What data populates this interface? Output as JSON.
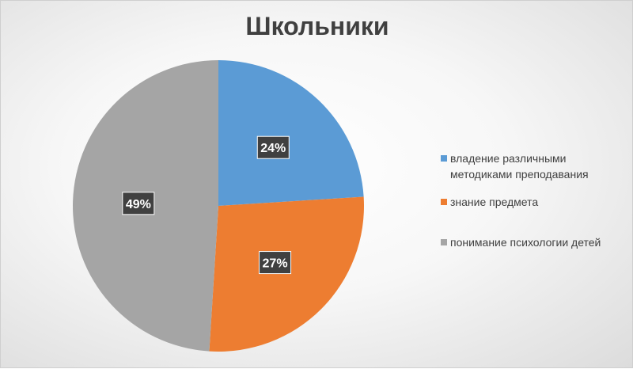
{
  "chart_data": {
    "type": "pie",
    "title": "Школьники",
    "categories": [
      "владение различными методиками преподавания",
      "знание предмета",
      "понимание психологии детей"
    ],
    "values": [
      24,
      27,
      49
    ],
    "labels": [
      "24%",
      "27%",
      "49%"
    ],
    "colors": [
      "#5b9bd5",
      "#ed7d31",
      "#a5a5a5"
    ],
    "legend_position": "right"
  },
  "legend": {
    "items": [
      {
        "label": "владение различными методиками преподавания",
        "color": "#5b9bd5"
      },
      {
        "label": "знание предмета",
        "color": "#ed7d31"
      },
      {
        "label": "понимание психологии детей",
        "color": "#a5a5a5"
      }
    ]
  }
}
